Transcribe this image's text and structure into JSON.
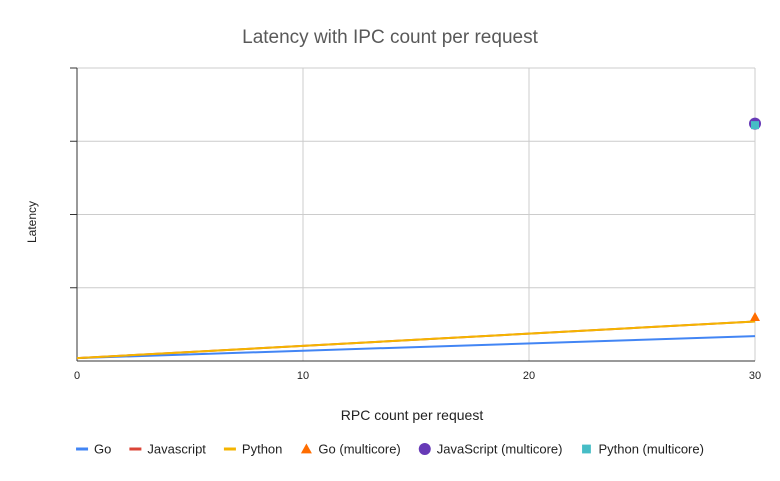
{
  "chart_data": {
    "type": "line",
    "title": "Latency with IPC count per request",
    "xlabel": "RPC count per request",
    "ylabel": "Latency",
    "xlim": [
      0,
      30
    ],
    "ylim": [
      0,
      100
    ],
    "x_ticks": [
      "0",
      "10",
      "20",
      "30"
    ],
    "y_ticks_shown": false,
    "grid": true,
    "legend_position": "bottom",
    "series": [
      {
        "name": "Go",
        "kind": "line",
        "color": "#4285F4",
        "x": [
          0,
          30
        ],
        "y": [
          1.0,
          8.5
        ]
      },
      {
        "name": "Javascript",
        "kind": "line",
        "color": "#DB4437",
        "x": [
          0,
          30
        ],
        "y": [
          1.0,
          13.5
        ]
      },
      {
        "name": "Python",
        "kind": "line",
        "color": "#F4B400",
        "x": [
          0,
          30
        ],
        "y": [
          1.0,
          13.5
        ]
      },
      {
        "name": "Go (multicore)",
        "kind": "point",
        "marker": "triangle",
        "color": "#FF6D00",
        "x": [
          30
        ],
        "y": [
          15.0
        ]
      },
      {
        "name": "JavaScript (multicore)",
        "kind": "point",
        "marker": "circle",
        "color": "#673AB7",
        "x": [
          30
        ],
        "y": [
          81.0
        ]
      },
      {
        "name": "Python (multicore)",
        "kind": "point",
        "marker": "square",
        "color": "#46BDC6",
        "x": [
          30
        ],
        "y": [
          80.5
        ]
      }
    ]
  }
}
